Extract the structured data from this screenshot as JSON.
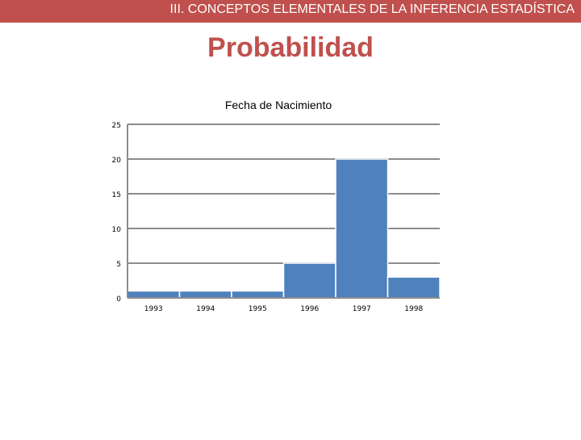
{
  "header": {
    "section_title": "III. CONCEPTOS ELEMENTALES DE LA INFERENCIA ESTADÍSTICA",
    "slide_title": "Probabilidad",
    "accent_color": "#c0504d"
  },
  "chart_data": {
    "type": "bar",
    "title": "Fecha de Nacimiento",
    "xlabel": "",
    "ylabel": "",
    "categories": [
      "1993",
      "1994",
      "1995",
      "1996",
      "1997",
      "1998"
    ],
    "values": [
      1,
      1,
      1,
      5,
      20,
      3
    ],
    "ylim": [
      0,
      25
    ],
    "yticks": [
      0,
      5,
      10,
      15,
      20,
      25
    ],
    "grid": true,
    "legend": "none",
    "bar_color": "#4f81bd"
  }
}
